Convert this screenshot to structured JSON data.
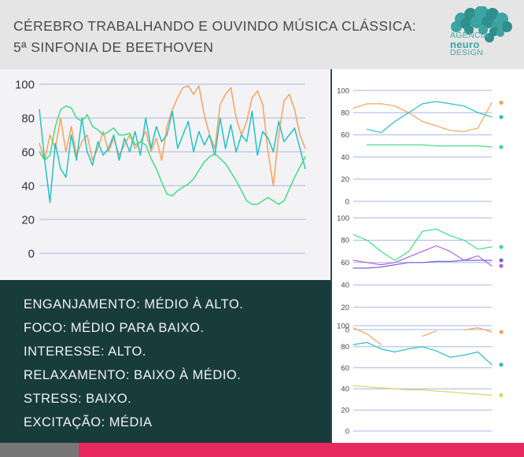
{
  "header": {
    "title_line1": "CÉREBRO TRABALHANDO E OUVINDO MÚSICA CLÁSSICA:",
    "title_line2": "5ª SINFONIA DE BEETHOVEN"
  },
  "logo": {
    "icon": "brain-icon",
    "line1": "AGÊNCIA",
    "line2": "neuro",
    "line3": "DESIGN",
    "color": "#4aa8a6"
  },
  "summary": {
    "lines": [
      "ENGANJAMENTO: MÉDIO À ALTO.",
      "FOCO: MÉDIO PARA BAIXO.",
      "INTERESSE: ALTO.",
      "RELAXAMENTO: BAIXO À MÉDIO.",
      "STRESS: BAIXO.",
      "EXCITAÇÃO: MÉDIA"
    ]
  },
  "colors": {
    "orange": "#f6a25c",
    "cyan": "#25c0c4",
    "green": "#41dd84",
    "purple": "#b561d6",
    "blue": "#6a66d9",
    "olive": "#e0d066",
    "grid": "#a9b6e6",
    "panel_dark": "#173c3b",
    "accent_pink": "#e8295e"
  },
  "chart_data": [
    {
      "type": "line",
      "grid": true,
      "ylim": [
        0,
        100
      ],
      "yticks": [
        "100",
        "80",
        "60",
        "40",
        "20",
        "0"
      ],
      "x": [
        0,
        2,
        4,
        6,
        8,
        10,
        12,
        14,
        16,
        18,
        20,
        22,
        24,
        26,
        28,
        30,
        32,
        34,
        36,
        38,
        40,
        42,
        44,
        46,
        48,
        50,
        52,
        54,
        56,
        58,
        60,
        62,
        64,
        66,
        68,
        70,
        72,
        74,
        76,
        78,
        80,
        82,
        84,
        86,
        88,
        90,
        92,
        94,
        96,
        98,
        100
      ],
      "series": [
        {
          "color": "#f6a25c",
          "values": [
            65,
            55,
            70,
            62,
            80,
            60,
            75,
            58,
            66,
            70,
            55,
            62,
            72,
            60,
            68,
            58,
            64,
            70,
            62,
            66,
            72,
            60,
            68,
            55,
            75,
            85,
            92,
            98,
            99,
            94,
            99,
            82,
            70,
            62,
            88,
            94,
            98,
            80,
            70,
            78,
            92,
            96,
            88,
            60,
            40,
            70,
            90,
            94,
            85,
            70,
            62
          ]
        },
        {
          "color": "#25c0c4",
          "values": [
            85,
            55,
            30,
            65,
            50,
            45,
            70,
            55,
            80,
            60,
            52,
            66,
            58,
            62,
            70,
            55,
            68,
            60,
            72,
            58,
            80,
            62,
            75,
            66,
            70,
            84,
            62,
            70,
            78,
            60,
            72,
            64,
            70,
            58,
            80,
            62,
            76,
            60,
            70,
            66,
            84,
            58,
            72,
            68,
            60,
            78,
            66,
            70,
            74,
            62,
            50
          ]
        },
        {
          "color": "#41dd84",
          "values": [
            60,
            55,
            58,
            75,
            85,
            87,
            86,
            80,
            78,
            82,
            75,
            73,
            70,
            72,
            74,
            70,
            70,
            71,
            64,
            66,
            64,
            56,
            50,
            42,
            35,
            34,
            37,
            39,
            41,
            44,
            49,
            54,
            57,
            59,
            56,
            53,
            48,
            43,
            37,
            31,
            29,
            29,
            31,
            33,
            31,
            29,
            31,
            38,
            45,
            51,
            57
          ]
        }
      ]
    },
    {
      "type": "line",
      "grid": true,
      "ylim": [
        0,
        100
      ],
      "yticks": [
        "100",
        "80",
        "60",
        "40",
        "20",
        "0"
      ],
      "x": [
        0,
        10,
        20,
        30,
        40,
        50,
        60,
        70,
        80,
        90,
        100
      ],
      "series": [
        {
          "color": "#f6a25c",
          "values": [
            84,
            88,
            88,
            86,
            80,
            72,
            68,
            64,
            63,
            66,
            89
          ]
        },
        {
          "color": "#25c0c4",
          "values": [
            null,
            65,
            62,
            72,
            80,
            88,
            90,
            88,
            86,
            80,
            76
          ]
        },
        {
          "color": "#41dd84",
          "values": [
            null,
            51,
            51,
            51,
            51,
            51,
            50,
            50,
            50,
            50,
            49
          ]
        }
      ]
    },
    {
      "type": "line",
      "grid": true,
      "ylim": [
        0,
        100
      ],
      "yticks": [
        "100",
        "80",
        "60",
        "40",
        "20",
        "0"
      ],
      "x": [
        0,
        10,
        20,
        30,
        40,
        50,
        60,
        70,
        80,
        90,
        100
      ],
      "series": [
        {
          "color": "#41dd84",
          "values": [
            85,
            80,
            70,
            62,
            70,
            88,
            90,
            84,
            80,
            72,
            74
          ]
        },
        {
          "color": "#b561d6",
          "values": [
            62,
            60,
            58,
            60,
            65,
            70,
            75,
            70,
            62,
            66,
            57
          ]
        },
        {
          "color": "#6a66d9",
          "values": [
            55,
            55,
            56,
            58,
            60,
            60,
            61,
            61,
            62,
            62,
            62
          ]
        }
      ]
    },
    {
      "type": "line",
      "grid": true,
      "ylim": [
        0,
        100
      ],
      "yticks": [
        "100",
        "80",
        "60",
        "40",
        "20",
        "0"
      ],
      "x": [
        0,
        10,
        20,
        30,
        40,
        50,
        60,
        70,
        80,
        90,
        100
      ],
      "series": [
        {
          "color": "#f6a25c",
          "values": [
            98,
            92,
            82,
            null,
            null,
            90,
            95,
            null,
            96,
            98,
            94
          ]
        },
        {
          "color": "#25c0c4",
          "values": [
            82,
            84,
            78,
            75,
            78,
            80,
            76,
            70,
            72,
            75,
            63
          ]
        },
        {
          "color": "#e0d066",
          "values": [
            43,
            42,
            41,
            40,
            39,
            39,
            38,
            37,
            36,
            35,
            34
          ]
        }
      ]
    }
  ]
}
